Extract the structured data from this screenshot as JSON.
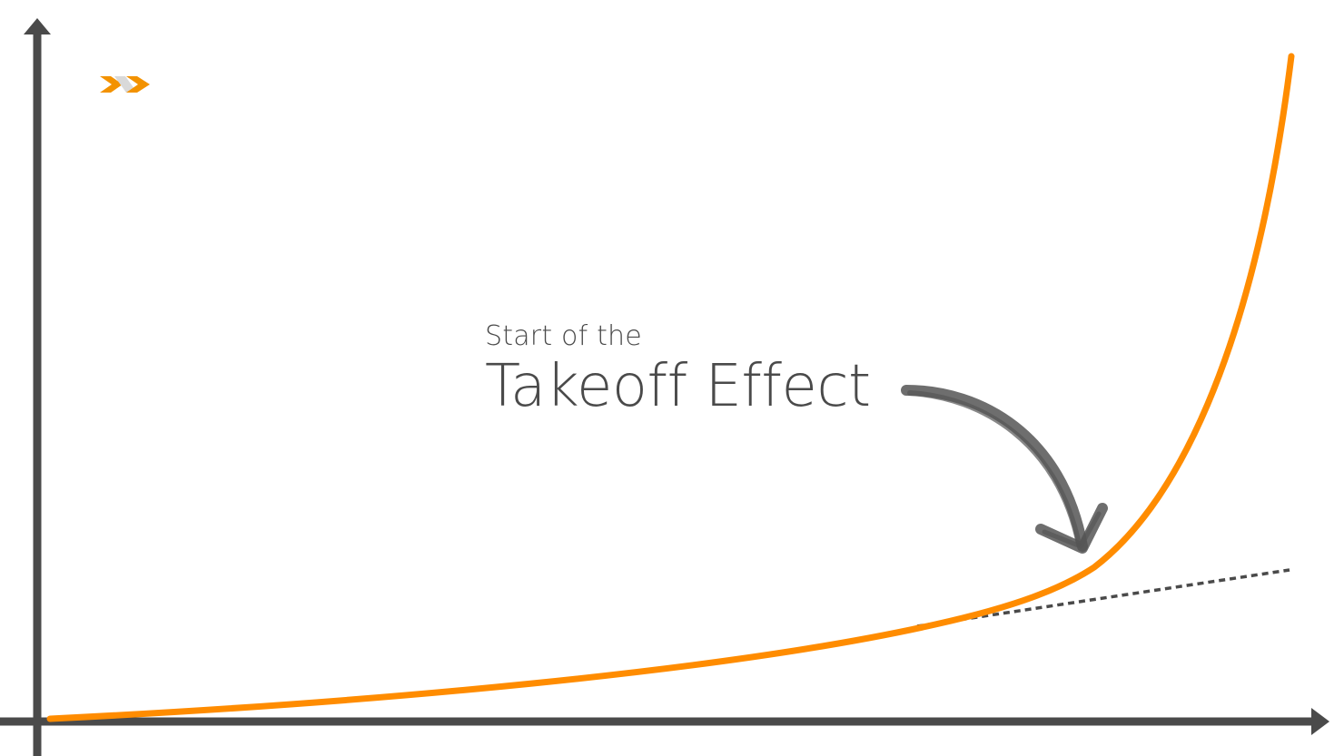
{
  "annotation": {
    "line1": "Start of the",
    "line2": "Takeoff Effect"
  },
  "colors": {
    "axis": "#4a4a4a",
    "curve": "#ff8c00",
    "trend": "#4a4a4a",
    "arrow": "#555555",
    "logo_primary": "#f39200",
    "logo_secondary": "#d9d9d9"
  },
  "logo": {
    "icon": "yx-logo-icon"
  },
  "icons": [
    "arrow-icon",
    "logo-icon"
  ]
}
